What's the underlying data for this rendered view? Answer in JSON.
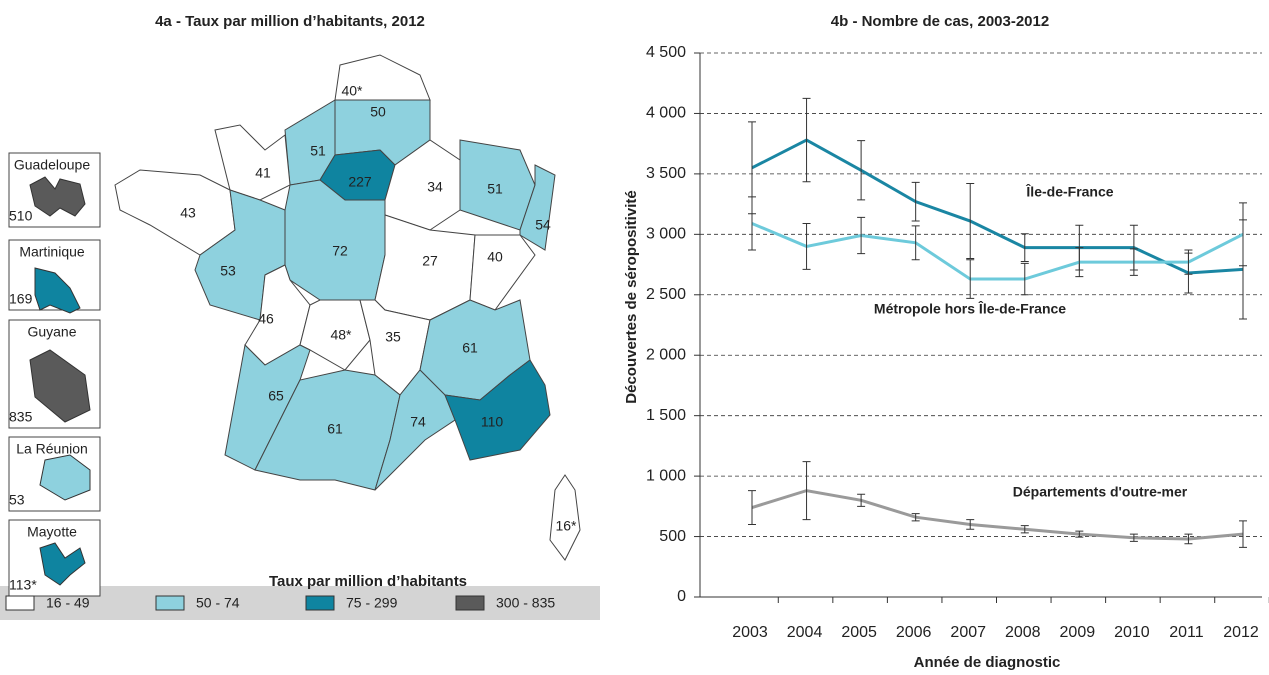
{
  "chart_data": [
    {
      "type": "choropleth",
      "title": "4a - Taux par million d’habitants, 2012",
      "values": [
        40,
        50,
        51,
        227,
        41,
        43,
        53,
        72,
        34,
        51,
        54,
        27,
        40,
        46,
        48,
        35,
        61,
        65,
        61,
        74,
        110,
        16
      ],
      "value_labels": [
        "40*",
        "50",
        "51",
        "227",
        "41",
        "43",
        "53",
        "72",
        "34",
        "51",
        "54",
        "27",
        "40",
        "46",
        "48*",
        "35",
        "61",
        "65",
        "61",
        "74",
        "110",
        "16*"
      ],
      "insets": [
        {
          "name": "Guadeloupe",
          "value": 510,
          "label": "510"
        },
        {
          "name": "Martinique",
          "value": 169,
          "label": "169"
        },
        {
          "name": "Guyane",
          "value": 835,
          "label": "835"
        },
        {
          "name": "La Réunion",
          "value": 53,
          "label": "53"
        },
        {
          "name": "Mayotte",
          "value": 113,
          "label": "113*"
        }
      ],
      "legend_title": "Taux par million d’habitants",
      "classes": [
        {
          "label": "16 - 49",
          "min": 16,
          "max": 49,
          "color": "#ffffff"
        },
        {
          "label": "50 - 74",
          "min": 50,
          "max": 74,
          "color": "#8ed1de"
        },
        {
          "label": "75 - 299",
          "min": 75,
          "max": 299,
          "color": "#0f84a0"
        },
        {
          "label": "300 - 835",
          "min": 300,
          "max": 835,
          "color": "#5a5a5a"
        }
      ]
    },
    {
      "type": "line",
      "title": "4b - Nombre de cas, 2003-2012",
      "xlabel": "Année de diagnostic",
      "ylabel": "Découvertes de séropositivité",
      "categories": [
        "2003",
        "2004",
        "2005",
        "2006",
        "2007",
        "2008",
        "2009",
        "2010",
        "2011",
        "2012"
      ],
      "ylim": [
        0,
        4500
      ],
      "yticks": [
        0,
        500,
        {
          "value": 1000,
          "label": "1 000"
        },
        {
          "value": 1500,
          "label": "1 500"
        },
        {
          "value": 2000,
          "label": "2 000"
        },
        {
          "value": 2500,
          "label": "2 500"
        },
        {
          "value": 3000,
          "label": "3 000"
        },
        {
          "value": 3500,
          "label": "3 500"
        },
        {
          "value": 4000,
          "label": "4 000"
        },
        {
          "value": 4500,
          "label": "4 500"
        }
      ],
      "grid": true,
      "series": [
        {
          "name": "Île-de-France",
          "color": "#1a86a3",
          "values": [
            3550,
            3780,
            3530,
            3270,
            3110,
            2890,
            2890,
            2890,
            2680,
            2710
          ],
          "errors": [
            380,
            345,
            245,
            160,
            310,
            115,
            185,
            185,
            165,
            410
          ]
        },
        {
          "name": "Métropole  hors Île-de-France",
          "color": "#6dcadb",
          "values": [
            3090,
            2900,
            2990,
            2930,
            2630,
            2630,
            2770,
            2770,
            2770,
            3000
          ],
          "errors": [
            220,
            190,
            150,
            140,
            160,
            130,
            120,
            110,
            100,
            260
          ]
        },
        {
          "name": "Départements  d'outre-mer",
          "color": "#9a9a9a",
          "values": [
            740,
            880,
            800,
            660,
            600,
            560,
            520,
            490,
            480,
            520
          ],
          "errors": [
            140,
            240,
            50,
            30,
            40,
            30,
            25,
            30,
            40,
            110
          ]
        }
      ]
    }
  ]
}
